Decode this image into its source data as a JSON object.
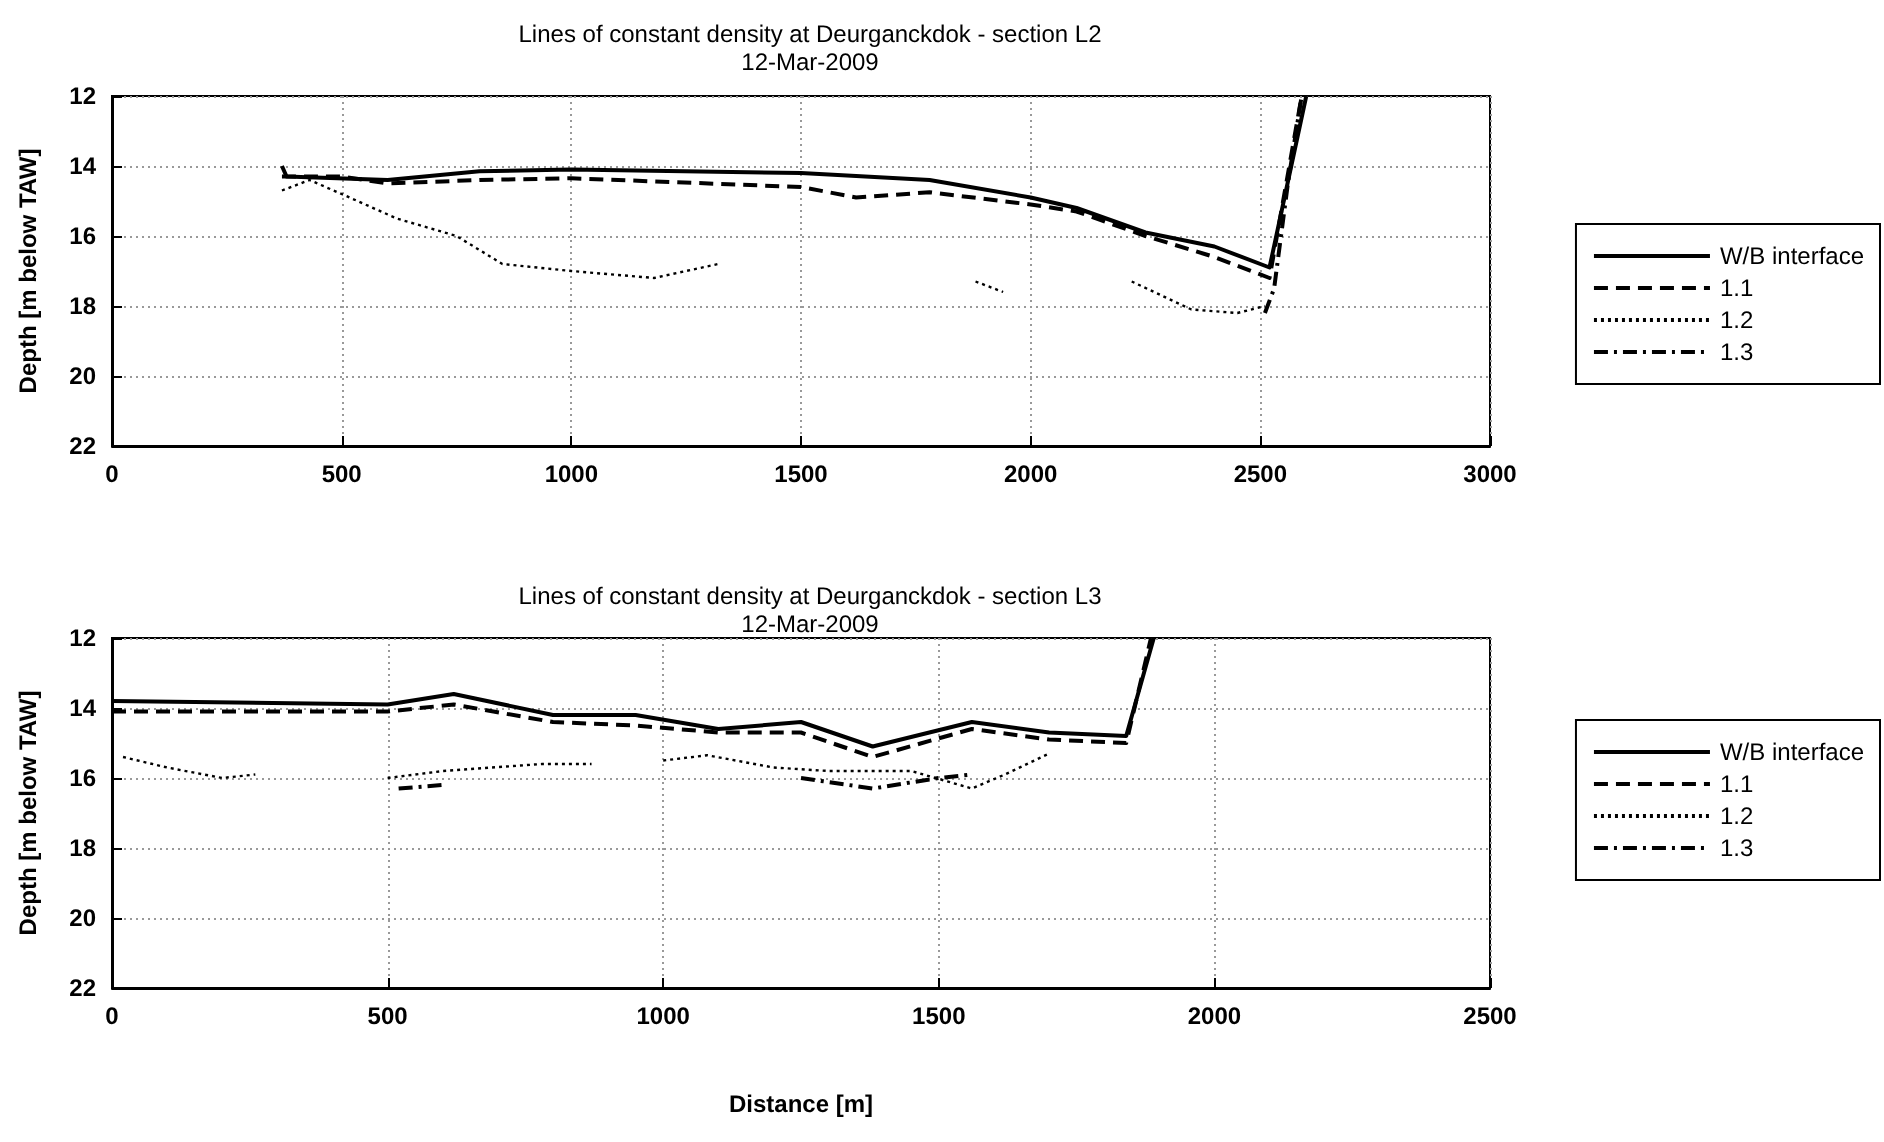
{
  "chart_data": [
    {
      "type": "line",
      "title": "Lines of constant density at Deurganckdok - section L2",
      "subtitle": "12-Mar-2009",
      "ylabel": "Depth [m below TAW]",
      "xlim": [
        0,
        3000
      ],
      "xticks": [
        0,
        500,
        1000,
        1500,
        2000,
        2500,
        3000
      ],
      "ylim": [
        22,
        12
      ],
      "yticks": [
        12,
        14,
        16,
        18,
        20,
        22
      ],
      "grid": true,
      "legend": "right",
      "marker": "none",
      "series": [
        {
          "name": "W/B interface",
          "color": "#000000",
          "line_style": "solid",
          "x": [
            370,
            380,
            600,
            800,
            1000,
            1500,
            1780,
            2000,
            2100,
            2250,
            2400,
            2520,
            2600
          ],
          "values": [
            14.0,
            14.3,
            14.4,
            14.15,
            14.1,
            14.2,
            14.4,
            14.9,
            15.2,
            15.9,
            16.3,
            16.9,
            12.0
          ]
        },
        {
          "name": "1.1",
          "color": "#000000",
          "line_style": "dashed",
          "x": [
            370,
            500,
            600,
            800,
            1000,
            1500,
            1620,
            1780,
            2000,
            2100,
            2250,
            2400,
            2520,
            2590
          ],
          "values": [
            14.3,
            14.3,
            14.5,
            14.4,
            14.35,
            14.6,
            14.9,
            14.75,
            15.1,
            15.3,
            16.0,
            16.6,
            17.2,
            12.0
          ]
        },
        {
          "name": "1.2",
          "color": "#000000",
          "line_style": "dotted",
          "x": [
            370,
            430,
            500,
            620,
            750,
            850,
            1000,
            1180,
            1320,
            1600,
            1880,
            1940,
            2100,
            2220,
            2350,
            2450,
            2510
          ],
          "values": [
            14.7,
            14.4,
            14.8,
            15.5,
            16.0,
            16.8,
            17.0,
            17.2,
            16.8,
            null,
            17.3,
            17.6,
            null,
            17.3,
            18.1,
            18.2,
            18.0
          ]
        },
        {
          "name": "1.3",
          "color": "#000000",
          "line_style": "dashdot",
          "x": [
            2510,
            2530,
            2560,
            2590
          ],
          "values": [
            18.2,
            17.5,
            14.5,
            12.0
          ]
        }
      ]
    },
    {
      "type": "line",
      "title": "Lines of constant density at Deurganckdok - section L3",
      "subtitle": "12-Mar-2009",
      "xlabel": "Distance [m]",
      "ylabel": "Depth [m below TAW]",
      "xlim": [
        0,
        2500
      ],
      "xticks": [
        0,
        500,
        1000,
        1500,
        2000,
        2500
      ],
      "ylim": [
        22,
        12
      ],
      "yticks": [
        12,
        14,
        16,
        18,
        20,
        22
      ],
      "grid": true,
      "legend": "right",
      "marker": "none",
      "series": [
        {
          "name": "W/B interface",
          "color": "#000000",
          "line_style": "solid",
          "x": [
            0,
            500,
            620,
            800,
            950,
            1100,
            1250,
            1380,
            1560,
            1700,
            1840,
            1890
          ],
          "values": [
            13.8,
            13.9,
            13.6,
            14.2,
            14.2,
            14.6,
            14.4,
            15.1,
            14.4,
            14.7,
            14.8,
            12.0
          ]
        },
        {
          "name": "1.1",
          "color": "#000000",
          "line_style": "dashed",
          "x": [
            0,
            500,
            620,
            800,
            950,
            1100,
            1250,
            1380,
            1560,
            1700,
            1840,
            1885
          ],
          "values": [
            14.1,
            14.1,
            13.9,
            14.4,
            14.5,
            14.7,
            14.7,
            15.4,
            14.6,
            14.9,
            15.0,
            12.0
          ]
        },
        {
          "name": "1.2",
          "color": "#000000",
          "line_style": "dotted",
          "x": [
            20,
            100,
            200,
            260,
            300,
            500,
            600,
            780,
            870,
            950,
            1000,
            1080,
            1200,
            1300,
            1450,
            1560,
            1620,
            1700
          ],
          "values": [
            15.4,
            15.7,
            16.0,
            15.9,
            null,
            16.0,
            15.8,
            15.6,
            15.6,
            null,
            15.5,
            15.35,
            15.7,
            15.8,
            15.8,
            16.3,
            15.9,
            15.3
          ]
        },
        {
          "name": "1.3",
          "color": "#000000",
          "line_style": "dashdot",
          "x": [
            520,
            600,
            700,
            1250,
            1380,
            1500,
            1560
          ],
          "values": [
            16.3,
            16.2,
            null,
            16.0,
            16.3,
            16.0,
            15.9
          ]
        }
      ]
    }
  ]
}
